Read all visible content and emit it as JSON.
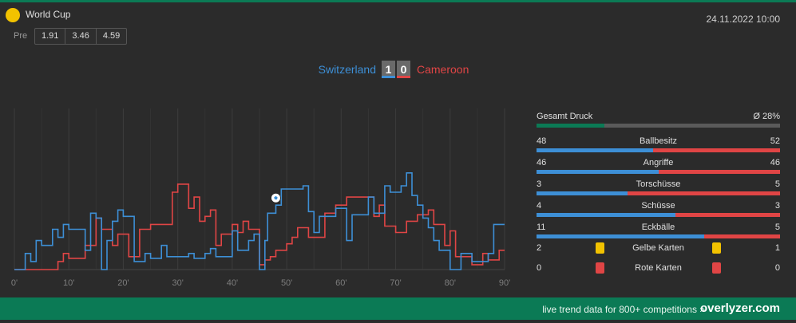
{
  "competition": {
    "name": "World Cup",
    "icon": "competition-icon",
    "icon_color": "#f2c200"
  },
  "date_time": "24.11.2022 10:00",
  "pre_odds": {
    "label": "Pre",
    "values": [
      "1.91",
      "3.46",
      "4.59"
    ]
  },
  "match": {
    "home_team": "Switzerland",
    "away_team": "Cameroon",
    "home_score": "1",
    "away_score": "0",
    "home_color": "#3d8fd6",
    "away_color": "#e04545"
  },
  "chart_data": {
    "type": "line",
    "xlabel": "",
    "ylabel": "",
    "x_ticks": [
      "0'",
      "10'",
      "20'",
      "30'",
      "40'",
      "50'",
      "60'",
      "70'",
      "80'",
      "90'"
    ],
    "xlim": [
      0,
      90
    ],
    "ylim": [
      0,
      100
    ],
    "goal_events": [
      {
        "minute": 48,
        "team": "home",
        "icon": "football-icon"
      }
    ],
    "series": [
      {
        "team": "home",
        "color": "#3d8fd6",
        "points": [
          [
            0,
            0
          ],
          [
            2,
            0
          ],
          [
            2,
            10
          ],
          [
            3,
            10
          ],
          [
            3,
            5
          ],
          [
            4,
            5
          ],
          [
            4,
            18
          ],
          [
            5,
            18
          ],
          [
            5,
            15
          ],
          [
            7,
            15
          ],
          [
            7,
            25
          ],
          [
            8,
            25
          ],
          [
            8,
            20
          ],
          [
            9,
            20
          ],
          [
            9,
            28
          ],
          [
            10,
            28
          ],
          [
            10,
            25
          ],
          [
            13,
            25
          ],
          [
            13,
            12
          ],
          [
            14,
            12
          ],
          [
            14,
            35
          ],
          [
            15,
            35
          ],
          [
            15,
            32
          ],
          [
            16,
            32
          ],
          [
            16,
            0
          ],
          [
            17,
            0
          ],
          [
            17,
            18
          ],
          [
            18,
            18
          ],
          [
            18,
            30
          ],
          [
            19,
            30
          ],
          [
            19,
            37
          ],
          [
            20,
            37
          ],
          [
            20,
            33
          ],
          [
            22,
            33
          ],
          [
            22,
            5
          ],
          [
            24,
            5
          ],
          [
            24,
            10
          ],
          [
            25,
            10
          ],
          [
            25,
            7
          ],
          [
            27,
            7
          ],
          [
            27,
            15
          ],
          [
            28,
            15
          ],
          [
            28,
            8
          ],
          [
            32,
            8
          ],
          [
            32,
            10
          ],
          [
            33,
            10
          ],
          [
            33,
            7
          ],
          [
            35,
            7
          ],
          [
            35,
            10
          ],
          [
            36,
            10
          ],
          [
            36,
            13
          ],
          [
            37,
            13
          ],
          [
            37,
            8
          ],
          [
            40,
            8
          ],
          [
            40,
            24
          ],
          [
            41,
            24
          ],
          [
            41,
            12
          ],
          [
            43,
            12
          ],
          [
            43,
            18
          ],
          [
            44,
            18
          ],
          [
            44,
            22
          ],
          [
            45,
            22
          ],
          [
            45,
            0
          ],
          [
            46,
            0
          ],
          [
            46,
            18
          ],
          [
            46.5,
            18
          ],
          [
            46.5,
            35
          ],
          [
            48,
            35
          ],
          [
            48,
            40
          ],
          [
            49,
            40
          ],
          [
            49,
            50
          ],
          [
            53,
            50
          ],
          [
            53,
            52
          ],
          [
            54,
            52
          ],
          [
            54,
            36
          ],
          [
            55,
            36
          ],
          [
            55,
            23
          ],
          [
            56,
            23
          ],
          [
            56,
            33
          ],
          [
            59,
            33
          ],
          [
            59,
            38
          ],
          [
            61,
            38
          ],
          [
            61,
            18
          ],
          [
            62,
            18
          ],
          [
            62,
            34
          ],
          [
            65,
            34
          ],
          [
            65,
            45
          ],
          [
            66,
            45
          ],
          [
            66,
            35
          ],
          [
            68,
            35
          ],
          [
            68,
            52
          ],
          [
            69,
            52
          ],
          [
            69,
            48
          ],
          [
            71,
            48
          ],
          [
            71,
            52
          ],
          [
            72,
            52
          ],
          [
            72,
            60
          ],
          [
            73,
            60
          ],
          [
            73,
            46
          ],
          [
            74,
            46
          ],
          [
            74,
            40
          ],
          [
            75,
            40
          ],
          [
            75,
            32
          ],
          [
            76,
            32
          ],
          [
            76,
            26
          ],
          [
            77,
            26
          ],
          [
            77,
            18
          ],
          [
            78,
            18
          ],
          [
            78,
            12
          ],
          [
            80,
            12
          ],
          [
            80,
            0
          ],
          [
            82,
            0
          ],
          [
            82,
            10
          ],
          [
            84,
            10
          ],
          [
            84,
            5
          ],
          [
            87,
            5
          ],
          [
            87,
            10
          ],
          [
            88,
            10
          ],
          [
            88,
            28
          ],
          [
            90,
            28
          ]
        ]
      },
      {
        "team": "away",
        "color": "#e04545",
        "points": [
          [
            0,
            0
          ],
          [
            8,
            0
          ],
          [
            8,
            5
          ],
          [
            9,
            5
          ],
          [
            9,
            10
          ],
          [
            10,
            10
          ],
          [
            10,
            7
          ],
          [
            13,
            7
          ],
          [
            13,
            15
          ],
          [
            15,
            15
          ],
          [
            15,
            32
          ],
          [
            16,
            32
          ],
          [
            16,
            25
          ],
          [
            18,
            25
          ],
          [
            18,
            15
          ],
          [
            19,
            15
          ],
          [
            19,
            22
          ],
          [
            21,
            22
          ],
          [
            21,
            8
          ],
          [
            23,
            8
          ],
          [
            23,
            25
          ],
          [
            25,
            25
          ],
          [
            25,
            28
          ],
          [
            29,
            28
          ],
          [
            29,
            48
          ],
          [
            30,
            48
          ],
          [
            30,
            53
          ],
          [
            32,
            53
          ],
          [
            32,
            38
          ],
          [
            33,
            38
          ],
          [
            33,
            45
          ],
          [
            34,
            45
          ],
          [
            34,
            30
          ],
          [
            35,
            30
          ],
          [
            35,
            33
          ],
          [
            36,
            33
          ],
          [
            36,
            37
          ],
          [
            37,
            37
          ],
          [
            37,
            15
          ],
          [
            38,
            15
          ],
          [
            38,
            22
          ],
          [
            40,
            22
          ],
          [
            40,
            28
          ],
          [
            41,
            28
          ],
          [
            41,
            23
          ],
          [
            42,
            23
          ],
          [
            42,
            30
          ],
          [
            43,
            30
          ],
          [
            43,
            25
          ],
          [
            45,
            25
          ],
          [
            45,
            3
          ],
          [
            46,
            3
          ],
          [
            46,
            6
          ],
          [
            47,
            6
          ],
          [
            47,
            8
          ],
          [
            48,
            8
          ],
          [
            48,
            12
          ],
          [
            50,
            12
          ],
          [
            50,
            16
          ],
          [
            51,
            16
          ],
          [
            51,
            20
          ],
          [
            52,
            20
          ],
          [
            52,
            26
          ],
          [
            54,
            26
          ],
          [
            54,
            20
          ],
          [
            57,
            20
          ],
          [
            57,
            35
          ],
          [
            59,
            35
          ],
          [
            59,
            40
          ],
          [
            61,
            40
          ],
          [
            61,
            45
          ],
          [
            66,
            45
          ],
          [
            66,
            33
          ],
          [
            67,
            33
          ],
          [
            67,
            40
          ],
          [
            68,
            40
          ],
          [
            68,
            27
          ],
          [
            70,
            27
          ],
          [
            70,
            23
          ],
          [
            72,
            23
          ],
          [
            72,
            30
          ],
          [
            74,
            30
          ],
          [
            74,
            34
          ],
          [
            76,
            34
          ],
          [
            76,
            37
          ],
          [
            77,
            37
          ],
          [
            77,
            28
          ],
          [
            79,
            28
          ],
          [
            79,
            15
          ],
          [
            80,
            15
          ],
          [
            80,
            24
          ],
          [
            81,
            24
          ],
          [
            81,
            8
          ],
          [
            84,
            8
          ],
          [
            84,
            3
          ],
          [
            86,
            3
          ],
          [
            86,
            10
          ],
          [
            87,
            10
          ],
          [
            87,
            6
          ],
          [
            89,
            6
          ],
          [
            89,
            12
          ],
          [
            90,
            12
          ]
        ]
      }
    ]
  },
  "stats": {
    "pressure": {
      "label": "Gesamt Druck",
      "value": "Ø 28%",
      "fraction": 0.28,
      "color": "#0b7a55"
    },
    "rows": [
      {
        "label": "Ballbesitz",
        "home": "48",
        "away": "52"
      },
      {
        "label": "Angriffe",
        "home": "46",
        "away": "46"
      },
      {
        "label": "Torschüsse",
        "home": "3",
        "away": "5"
      },
      {
        "label": "Schüsse",
        "home": "4",
        "away": "3"
      },
      {
        "label": "Eckbälle",
        "home": "11",
        "away": "5"
      }
    ],
    "cards": [
      {
        "label": "Gelbe Karten",
        "home": "2",
        "away": "1",
        "color": "#f2c200",
        "icon": "yellow-card-icon"
      },
      {
        "label": "Rote Karten",
        "home": "0",
        "away": "0",
        "color": "#e04545",
        "icon": "red-card-icon"
      }
    ]
  },
  "footer": {
    "tagline": "live trend data for 800+ competitions »",
    "brand": "overlyzer.com"
  }
}
